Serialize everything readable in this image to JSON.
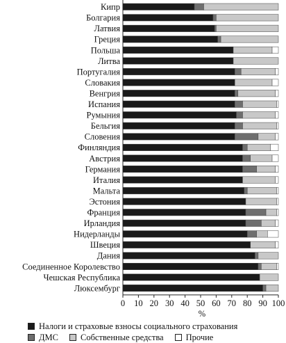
{
  "chart_data": {
    "type": "bar",
    "orientation": "horizontal",
    "stacked": true,
    "xlabel": "%",
    "xlim": [
      0,
      100
    ],
    "xticks": [
      "0",
      "10",
      "20",
      "30",
      "40",
      "50",
      "60",
      "70",
      "80",
      "90",
      "100"
    ],
    "categories": [
      "Кипр",
      "Болгария",
      "Латвия",
      "Греция",
      "Польша",
      "Литва",
      "Португалия",
      "Словакия",
      "Венгрия",
      "Испания",
      "Румыния",
      "Бельгия",
      "Словения",
      "Финляндия",
      "Австрия",
      "Германия",
      "Италия",
      "Мальта",
      "Эстония",
      "Франция",
      "Ирландия",
      "Нидерланды",
      "Швеция",
      "Дания",
      "Соединенное Королевство",
      "Чешская Республика",
      "Люксембург"
    ],
    "series": [
      {
        "name": "Налоги и страховые взносы социального страхования",
        "color": "#1a1a1a",
        "values": [
          46,
          58,
          59,
          61,
          71,
          71,
          72,
          72,
          72,
          72,
          73,
          72,
          72,
          77,
          77,
          77,
          77,
          78,
          79,
          79,
          79,
          80,
          82,
          85,
          87,
          88,
          90
        ]
      },
      {
        "name": "ДМС",
        "color": "#6e6e6e",
        "values": [
          6,
          2,
          1,
          2,
          0,
          0,
          4,
          0,
          2,
          5,
          4,
          5,
          15,
          3,
          5,
          9,
          0,
          2,
          0,
          13,
          10,
          6,
          0,
          2,
          2,
          0,
          2
        ]
      },
      {
        "name": "Собственные средства",
        "color": "#c8c8c8",
        "values": [
          48,
          40,
          40,
          37,
          25,
          29,
          22,
          24,
          24,
          22,
          21,
          22,
          11,
          15,
          14,
          12,
          21,
          19,
          20,
          7,
          9,
          7,
          16,
          13,
          10,
          12,
          8
        ]
      },
      {
        "name": "Прочие",
        "color": "#ffffff",
        "values": [
          0,
          0,
          0,
          0,
          4,
          0,
          2,
          4,
          2,
          1,
          2,
          1,
          2,
          5,
          4,
          2,
          2,
          1,
          1,
          1,
          2,
          7,
          2,
          0,
          1,
          0,
          0
        ]
      }
    ],
    "grid": false,
    "legend_position": "bottom"
  }
}
